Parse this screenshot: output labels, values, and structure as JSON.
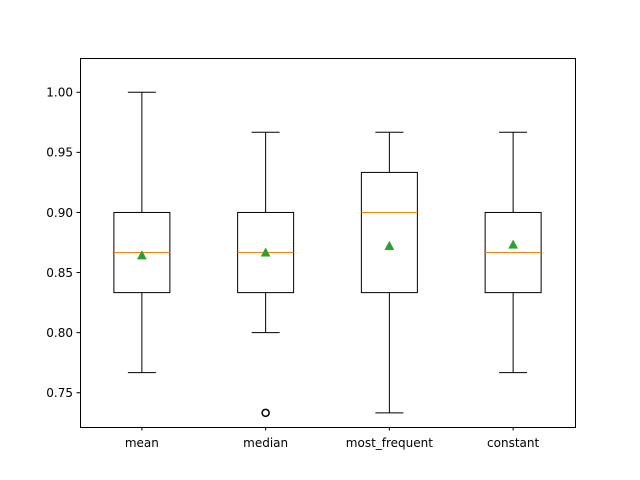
{
  "chart_data": {
    "type": "box",
    "title": "",
    "xlabel": "",
    "ylabel": "",
    "categories": [
      "mean",
      "median",
      "most_frequent",
      "constant"
    ],
    "ylim": [
      0.7215,
      1.0285
    ],
    "yticks": [
      0.75,
      0.8,
      0.85,
      0.9,
      0.95,
      1.0
    ],
    "ytick_labels": [
      "0.75",
      "0.80",
      "0.85",
      "0.90",
      "0.95",
      "1.00"
    ],
    "boxes": [
      {
        "name": "mean",
        "whisker_low": 0.7667,
        "q1": 0.8333,
        "median": 0.8667,
        "q3": 0.9,
        "whisker_high": 1.0,
        "mean": 0.8644,
        "outliers": []
      },
      {
        "name": "median",
        "whisker_low": 0.8,
        "q1": 0.8333,
        "median": 0.8667,
        "q3": 0.9,
        "whisker_high": 0.9667,
        "mean": 0.8667,
        "outliers": [
          0.7333
        ]
      },
      {
        "name": "most_frequent",
        "whisker_low": 0.7333,
        "q1": 0.8333,
        "median": 0.9,
        "q3": 0.9333,
        "whisker_high": 0.9667,
        "mean": 0.8722,
        "outliers": []
      },
      {
        "name": "constant",
        "whisker_low": 0.7667,
        "q1": 0.8333,
        "median": 0.8667,
        "q3": 0.9,
        "whisker_high": 0.9667,
        "mean": 0.8733,
        "outliers": []
      }
    ],
    "grid": false,
    "legend": "none",
    "colors": {
      "box": "#000000",
      "median": "#ff7f0e",
      "mean": "#2ca02c",
      "outlier": "#000000"
    }
  }
}
